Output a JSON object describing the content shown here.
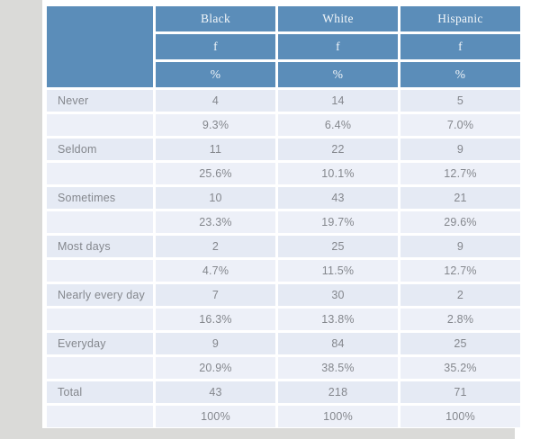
{
  "table": {
    "stub_header": "",
    "group_headers": [
      "Black",
      "White",
      "Hispanic"
    ],
    "measure_rows": [
      "f",
      "%"
    ],
    "rows": [
      {
        "label": "Never",
        "f": [
          "4",
          "14",
          "5"
        ],
        "pct": [
          "9.3%",
          "6.4%",
          "7.0%"
        ]
      },
      {
        "label": "Seldom",
        "f": [
          "11",
          "22",
          "9"
        ],
        "pct": [
          "25.6%",
          "10.1%",
          "12.7%"
        ]
      },
      {
        "label": "Sometimes",
        "f": [
          "10",
          "43",
          "21"
        ],
        "pct": [
          "23.3%",
          "19.7%",
          "29.6%"
        ]
      },
      {
        "label": "Most days",
        "f": [
          "2",
          "25",
          "9"
        ],
        "pct": [
          "4.7%",
          "11.5%",
          "12.7%"
        ]
      },
      {
        "label": "Nearly every day",
        "f": [
          "7",
          "30",
          "2"
        ],
        "pct": [
          "16.3%",
          "13.8%",
          "2.8%"
        ]
      },
      {
        "label": "Everyday",
        "f": [
          "9",
          "84",
          "25"
        ],
        "pct": [
          "20.9%",
          "38.5%",
          "35.2%"
        ]
      },
      {
        "label": "Total",
        "f": [
          "43",
          "218",
          "71"
        ],
        "pct": [
          "100%",
          "100%",
          "100%"
        ]
      }
    ]
  },
  "colors": {
    "header_bg": "#5b8db9",
    "header_text": "#f2f6f9",
    "row_bg_f": "#e5eaf4",
    "row_bg_pct": "#edf0f8",
    "grid_line": "#ffffff",
    "body_text": "#84878d",
    "margin_gray": "#dadad8"
  }
}
